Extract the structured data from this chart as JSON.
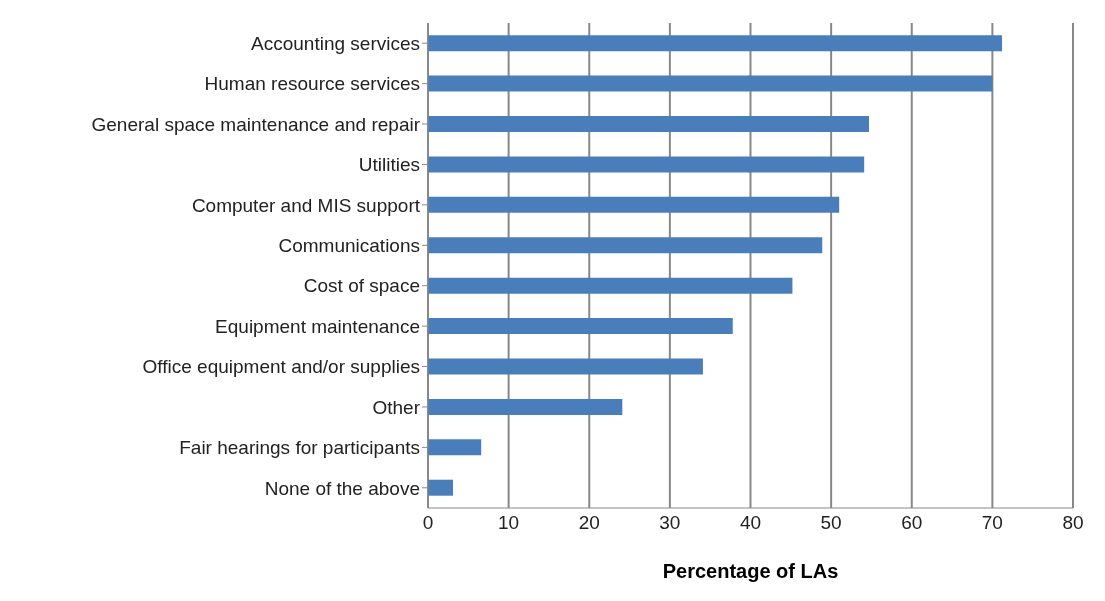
{
  "chart_data": {
    "type": "bar",
    "orientation": "horizontal",
    "xlabel": "Percentage of LAs",
    "categories": [
      "Accounting services",
      "Human resource services",
      "General space maintenance and repair",
      "Utilities",
      "Computer and MIS support",
      "Communications",
      "Cost of space",
      "Equipment maintenance",
      "Office equipment and/or supplies",
      "Other",
      "Fair hearings for participants",
      "None of the above"
    ],
    "values": [
      71.2,
      70,
      54.7,
      54.1,
      51,
      48.9,
      45.2,
      37.8,
      34.1,
      24.1,
      6.6,
      3.1
    ],
    "color": "#4a7ebb",
    "xlim": [
      0,
      80
    ],
    "xticks": [
      0,
      10,
      20,
      30,
      40,
      50,
      60,
      70,
      80
    ],
    "grid": "x"
  }
}
